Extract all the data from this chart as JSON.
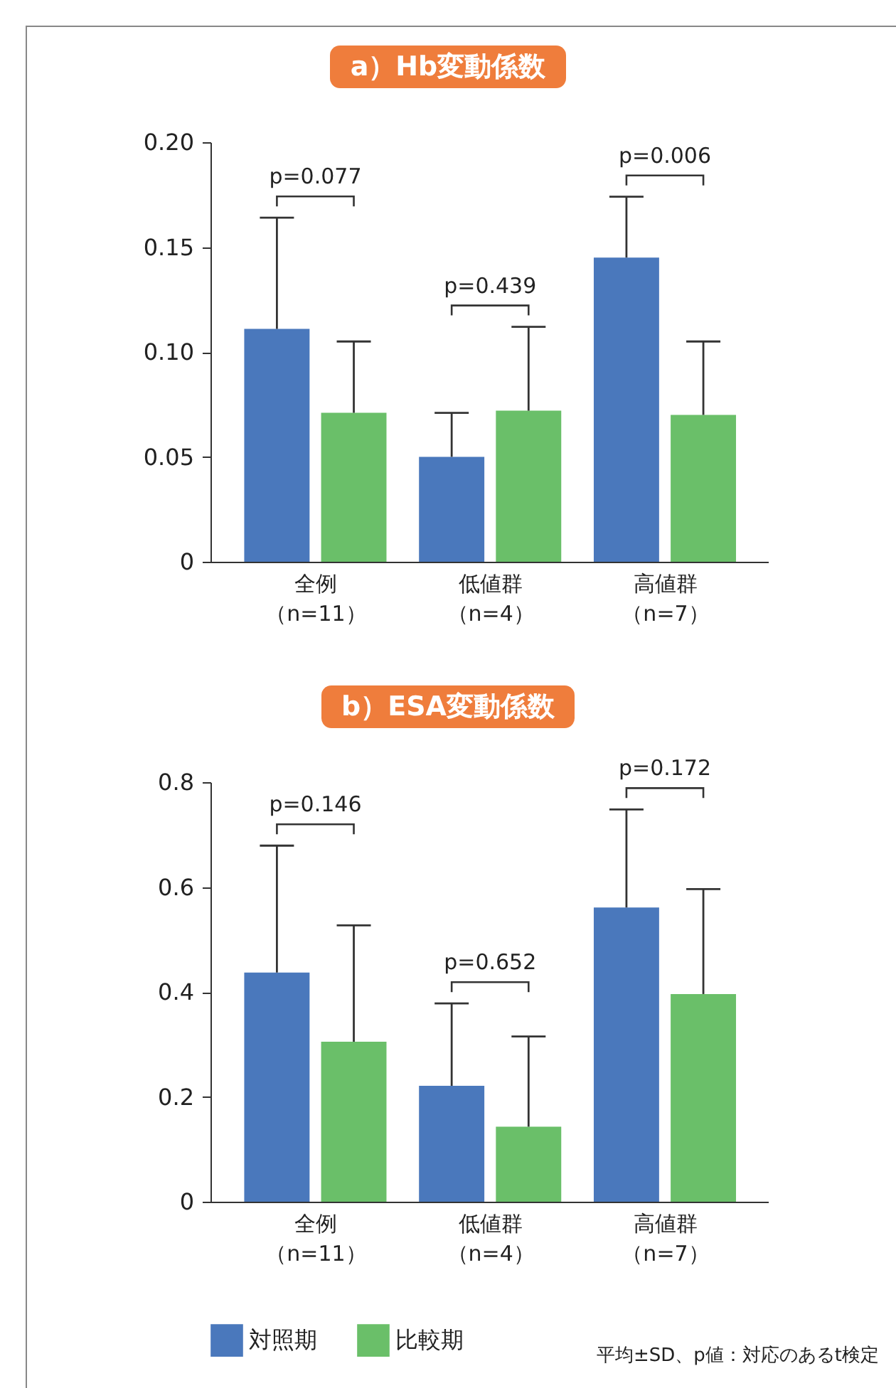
{
  "chart_data": [
    {
      "type": "bar",
      "title": "a）Hb変動係数",
      "categories": [
        "全例（n=11）",
        "低値群（n=4）",
        "高値群（n=7）"
      ],
      "series": [
        {
          "color": "#4a78bc",
          "values": [
            0.111,
            0.05,
            0.145
          ],
          "errors": [
            [
              0.111,
              0.164
            ],
            [
              0.05,
              0.071
            ],
            [
              0.145,
              0.174
            ]
          ]
        },
        {
          "color": "#6abf69",
          "values": [
            0.071,
            0.072,
            0.07
          ],
          "errors": [
            [
              0.071,
              0.105
            ],
            [
              0.072,
              0.112
            ],
            [
              0.07,
              0.105
            ]
          ]
        }
      ],
      "ylim": [
        0,
        0.2
      ],
      "yticks": [
        {
          "value": 0,
          "label": "0"
        },
        {
          "value": 0.05,
          "label": "0.05"
        },
        {
          "value": 0.1,
          "label": "0.10"
        },
        {
          "value": 0.15,
          "label": "0.15"
        },
        {
          "value": 0.2,
          "label": "0.20"
        }
      ],
      "annotations": [
        "p=0.077",
        "p=0.439",
        "p=0.006"
      ]
    },
    {
      "type": "bar",
      "title": "b）ESA変動係数",
      "categories": [
        "全例（n=11）",
        "低値群（n=4）",
        "高値群（n=7）"
      ],
      "series": [
        {
          "name": "対照期",
          "color": "#4a78bc",
          "values": [
            0.437,
            0.221,
            0.561
          ],
          "errors": [
            [
              0.437,
              0.679
            ],
            [
              0.221,
              0.378
            ],
            [
              0.561,
              0.748
            ]
          ]
        },
        {
          "name": "比較期",
          "color": "#6abf69",
          "values": [
            0.305,
            0.143,
            0.396
          ],
          "errors": [
            [
              0.305,
              0.527
            ],
            [
              0.143,
              0.315
            ],
            [
              0.396,
              0.596
            ]
          ]
        }
      ],
      "ylim": [
        0,
        0.8
      ],
      "yticks": [
        0,
        0.2,
        0.4,
        0.6,
        0.8
      ],
      "legend": "bottom",
      "annotations": [
        "p=0.146",
        "p=0.652",
        "p=0.172",
        "平均±SD、p値：対応のあるt検定"
      ]
    }
  ]
}
